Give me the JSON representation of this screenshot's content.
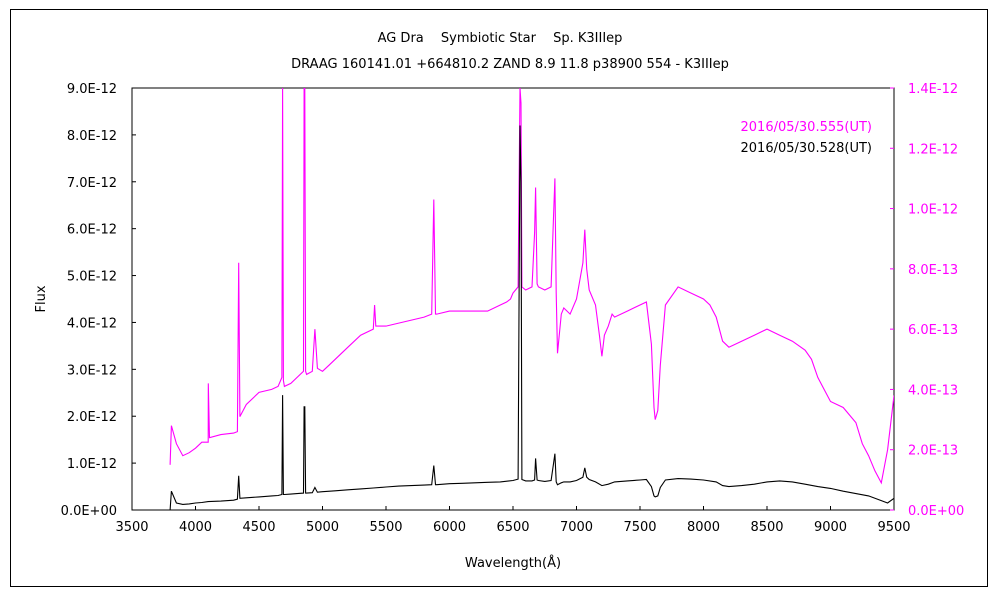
{
  "chart_data": {
    "type": "line",
    "title": "AG Dra　 Symbiotic Star　 Sp. K3IIIep",
    "subtitle": "DRAAG 160141.01 +664810.2 ZAND 8.9 11.8 p38900 554 - K3IIIep",
    "xlabel": "Wavelength(Å)",
    "ylabel": "Flux",
    "xlim": [
      3500,
      9500
    ],
    "ylim_left": [
      0,
      9e-12
    ],
    "ylim_right": [
      0,
      1.4e-12
    ],
    "x_ticks": [
      "3500",
      "4000",
      "4500",
      "5000",
      "5500",
      "6000",
      "6500",
      "7000",
      "7500",
      "8000",
      "8500",
      "9000",
      "9500"
    ],
    "y_ticks_left": [
      "0.0E+00",
      "1.0E-12",
      "2.0E-12",
      "3.0E-12",
      "4.0E-12",
      "5.0E-12",
      "6.0E-12",
      "7.0E-12",
      "8.0E-12",
      "9.0E-12"
    ],
    "y_ticks_right": [
      "0.0E+00",
      "2.0E-13",
      "4.0E-13",
      "6.0E-13",
      "8.0E-13",
      "1.0E-12",
      "1.2E-12",
      "1.4E-12"
    ],
    "legend_placement": "top-right",
    "series": [
      {
        "name": "2016/05/30.555(UT)",
        "color": "#ff00ff",
        "axis": "right",
        "x": [
          3800,
          3810,
          3850,
          3900,
          3950,
          4000,
          4050,
          4100,
          4101,
          4110,
          4200,
          4300,
          4330,
          4340,
          4350,
          4400,
          4500,
          4600,
          4650,
          4680,
          4686,
          4692,
          4700,
          4750,
          4800,
          4850,
          4855,
          4861,
          4867,
          4875,
          4920,
          4940,
          4960,
          5000,
          5050,
          5100,
          5200,
          5300,
          5400,
          5410,
          5420,
          5500,
          5600,
          5700,
          5800,
          5860,
          5876,
          5890,
          5900,
          6000,
          6100,
          6200,
          6300,
          6400,
          6450,
          6480,
          6500,
          6540,
          6555,
          6563,
          6570,
          6600,
          6650,
          6670,
          6678,
          6690,
          6700,
          6750,
          6800,
          6820,
          6830,
          6840,
          6850,
          6880,
          6900,
          6950,
          7000,
          7050,
          7065,
          7080,
          7100,
          7150,
          7180,
          7200,
          7220,
          7250,
          7280,
          7300,
          7400,
          7500,
          7550,
          7590,
          7610,
          7620,
          7640,
          7660,
          7700,
          7800,
          7900,
          8000,
          8050,
          8100,
          8150,
          8200,
          8300,
          8400,
          8500,
          8600,
          8700,
          8800,
          8850,
          8900,
          8950,
          9000,
          9100,
          9200,
          9250,
          9300,
          9350,
          9400,
          9450,
          9500
        ],
        "y": [
          1.5e-13,
          2.8e-13,
          2.2e-13,
          1.8e-13,
          1.9e-13,
          2.05e-13,
          2.25e-13,
          2.25e-13,
          4.2e-13,
          2.4e-13,
          2.5e-13,
          2.55e-13,
          2.6e-13,
          8.2e-13,
          3.1e-13,
          3.5e-13,
          3.9e-13,
          4e-13,
          4.1e-13,
          4.4e-13,
          1.4e-12,
          4.3e-13,
          4.1e-13,
          4.2e-13,
          4.4e-13,
          4.6e-13,
          1.4e-12,
          1.4e-12,
          4.6e-13,
          4.5e-13,
          4.6e-13,
          6e-13,
          4.7e-13,
          4.6e-13,
          4.8e-13,
          5e-13,
          5.4e-13,
          5.8e-13,
          6e-13,
          6.8e-13,
          6.1e-13,
          6.1e-13,
          6.2e-13,
          6.3e-13,
          6.4e-13,
          6.5e-13,
          1.03e-12,
          6.5e-13,
          6.5e-13,
          6.6e-13,
          6.6e-13,
          6.6e-13,
          6.6e-13,
          6.8e-13,
          6.9e-13,
          7e-13,
          7.2e-13,
          7.4e-13,
          1.4e-12,
          1.35e-12,
          7.4e-13,
          7.3e-13,
          7.4e-13,
          9.2e-13,
          1.07e-12,
          7.5e-13,
          7.4e-13,
          7.3e-13,
          7.4e-13,
          9.8e-13,
          1.1e-12,
          7.2e-13,
          5.2e-13,
          6.5e-13,
          6.7e-13,
          6.5e-13,
          7e-13,
          8.2e-13,
          9.3e-13,
          8e-13,
          7.3e-13,
          6.8e-13,
          5.8e-13,
          5.1e-13,
          5.8e-13,
          6.1e-13,
          6.5e-13,
          6.4e-13,
          6.6e-13,
          6.8e-13,
          6.9e-13,
          5.5e-13,
          3.4e-13,
          3e-13,
          3.3e-13,
          4.8e-13,
          6.8e-13,
          7.4e-13,
          7.2e-13,
          7e-13,
          6.8e-13,
          6.4e-13,
          5.6e-13,
          5.4e-13,
          5.6e-13,
          5.8e-13,
          6e-13,
          5.8e-13,
          5.6e-13,
          5.3e-13,
          5e-13,
          4.4e-13,
          4e-13,
          3.6e-13,
          3.4e-13,
          2.9e-13,
          2.2e-13,
          1.8e-13,
          1.3e-13,
          9e-14,
          2e-13,
          3.8e-13
        ]
      },
      {
        "name": "2016/05/30.528(UT)",
        "color": "#000000",
        "axis": "left",
        "x": [
          3800,
          3810,
          3850,
          3900,
          3950,
          4000,
          4050,
          4100,
          4200,
          4300,
          4330,
          4340,
          4350,
          4400,
          4500,
          4600,
          4650,
          4680,
          4686,
          4692,
          4700,
          4750,
          4800,
          4850,
          4855,
          4861,
          4867,
          4875,
          4920,
          4940,
          4960,
          5000,
          5100,
          5200,
          5300,
          5400,
          5500,
          5600,
          5700,
          5800,
          5860,
          5876,
          5890,
          5900,
          6000,
          6100,
          6200,
          6300,
          6400,
          6500,
          6540,
          6555,
          6563,
          6570,
          6600,
          6650,
          6670,
          6678,
          6690,
          6700,
          6750,
          6800,
          6820,
          6830,
          6840,
          6850,
          6880,
          6900,
          6950,
          7000,
          7050,
          7065,
          7080,
          7100,
          7150,
          7200,
          7250,
          7300,
          7400,
          7500,
          7550,
          7590,
          7610,
          7620,
          7640,
          7660,
          7700,
          7800,
          7900,
          8000,
          8100,
          8150,
          8200,
          8300,
          8400,
          8500,
          8600,
          8700,
          8800,
          8900,
          9000,
          9100,
          9200,
          9300,
          9400,
          9450,
          9500
        ],
        "y": [
          0,
          4e-13,
          1.5e-13,
          1.2e-13,
          1.3e-13,
          1.5e-13,
          1.6e-13,
          1.8e-13,
          1.9e-13,
          2.1e-13,
          2.3e-13,
          7.3e-13,
          2.5e-13,
          2.6e-13,
          2.8e-13,
          3e-13,
          3.1e-13,
          3.3e-13,
          2.45e-12,
          3.3e-13,
          3.3e-13,
          3.4e-13,
          3.5e-13,
          3.6e-13,
          2.2e-12,
          2.2e-12,
          3.6e-13,
          3.6e-13,
          3.7e-13,
          4.8e-13,
          3.8e-13,
          3.9e-13,
          4.1e-13,
          4.3e-13,
          4.5e-13,
          4.7e-13,
          4.9e-13,
          5.1e-13,
          5.2e-13,
          5.3e-13,
          5.4e-13,
          9.5e-13,
          5.4e-13,
          5.4e-13,
          5.6e-13,
          5.7e-13,
          5.8e-13,
          5.9e-13,
          6e-13,
          6.3e-13,
          6.6e-13,
          8.2e-12,
          7e-12,
          6.5e-13,
          6.2e-13,
          6.2e-13,
          6.4e-13,
          1.1e-12,
          6.4e-13,
          6.3e-13,
          6.1e-13,
          6.3e-13,
          1e-12,
          1.2e-12,
          6e-13,
          5.4e-13,
          5.8e-13,
          6e-13,
          6e-13,
          6.3e-13,
          7e-13,
          9e-13,
          7e-13,
          6.5e-13,
          6e-13,
          5.2e-13,
          5.5e-13,
          6e-13,
          6.2e-13,
          6.4e-13,
          6.5e-13,
          5e-13,
          3e-13,
          2.8e-13,
          3e-13,
          4.8e-13,
          6.4e-13,
          6.7e-13,
          6.6e-13,
          6.4e-13,
          6e-13,
          5.2e-13,
          5e-13,
          5.2e-13,
          5.5e-13,
          6e-13,
          6.2e-13,
          6e-13,
          5.5e-13,
          5e-13,
          4.6e-13,
          4e-13,
          3.5e-13,
          3e-13,
          2e-13,
          1.5e-13,
          2.5e-13
        ]
      }
    ]
  }
}
